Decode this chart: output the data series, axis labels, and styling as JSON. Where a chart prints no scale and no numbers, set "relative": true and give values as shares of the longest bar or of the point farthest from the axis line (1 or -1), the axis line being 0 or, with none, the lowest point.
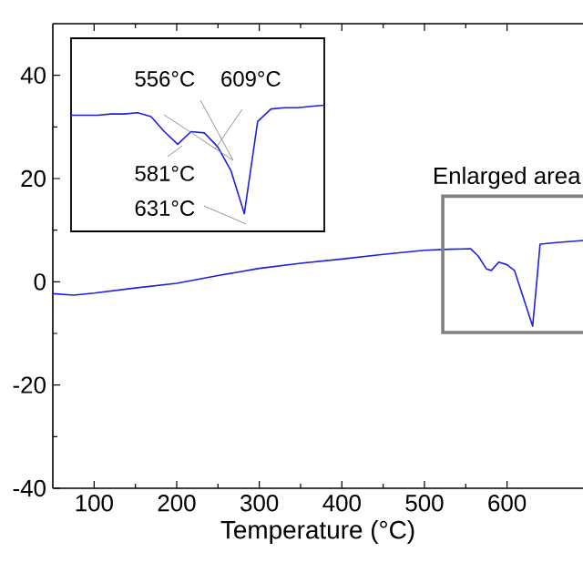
{
  "chart_data": [
    {
      "type": "line",
      "xlabel": "Temperature (°C)",
      "xlim": [
        50,
        692
      ],
      "ylim": [
        -40,
        50
      ],
      "xticks": [
        100,
        200,
        300,
        400,
        500,
        600
      ],
      "yticks": [
        -40,
        -20,
        0,
        20,
        40
      ],
      "x": [
        50,
        75,
        100,
        150,
        200,
        250,
        300,
        350,
        400,
        450,
        500,
        530,
        556,
        565,
        575,
        581,
        590,
        600,
        609,
        620,
        631,
        636,
        640,
        660,
        692
      ],
      "series": [
        {
          "color": "#1f1fdc",
          "values": [
            -2.3,
            -2.6,
            -2.2,
            -1.2,
            -0.3,
            1.2,
            2.6,
            3.6,
            4.4,
            5.3,
            6.1,
            6.3,
            6.4,
            5.0,
            2.5,
            2.2,
            3.8,
            3.3,
            2.2,
            -3.2,
            -8.6,
            0,
            7.3,
            7.6,
            8.0
          ]
        }
      ],
      "annotations": [
        "Enlarged area"
      ]
    },
    {
      "type": "line",
      "relative": true,
      "categories": [
        null,
        null,
        null,
        null,
        null,
        null,
        null,
        null,
        null,
        null,
        null,
        null,
        null,
        null,
        null,
        null,
        null,
        null,
        null,
        null
      ],
      "series": [
        {
          "color": "#1f1fdc",
          "values": [
            0.92,
            0.92,
            0.92,
            0.93,
            0.93,
            0.94,
            0.91,
            0.79,
            0.69,
            0.79,
            0.78,
            0.67,
            0.48,
            0.14,
            0.87,
            0.97,
            0.98,
            0.98,
            0.99,
            1.0
          ]
        }
      ],
      "annotations": [
        "556°C",
        "609°C",
        "581°C",
        "631°C"
      ]
    }
  ]
}
